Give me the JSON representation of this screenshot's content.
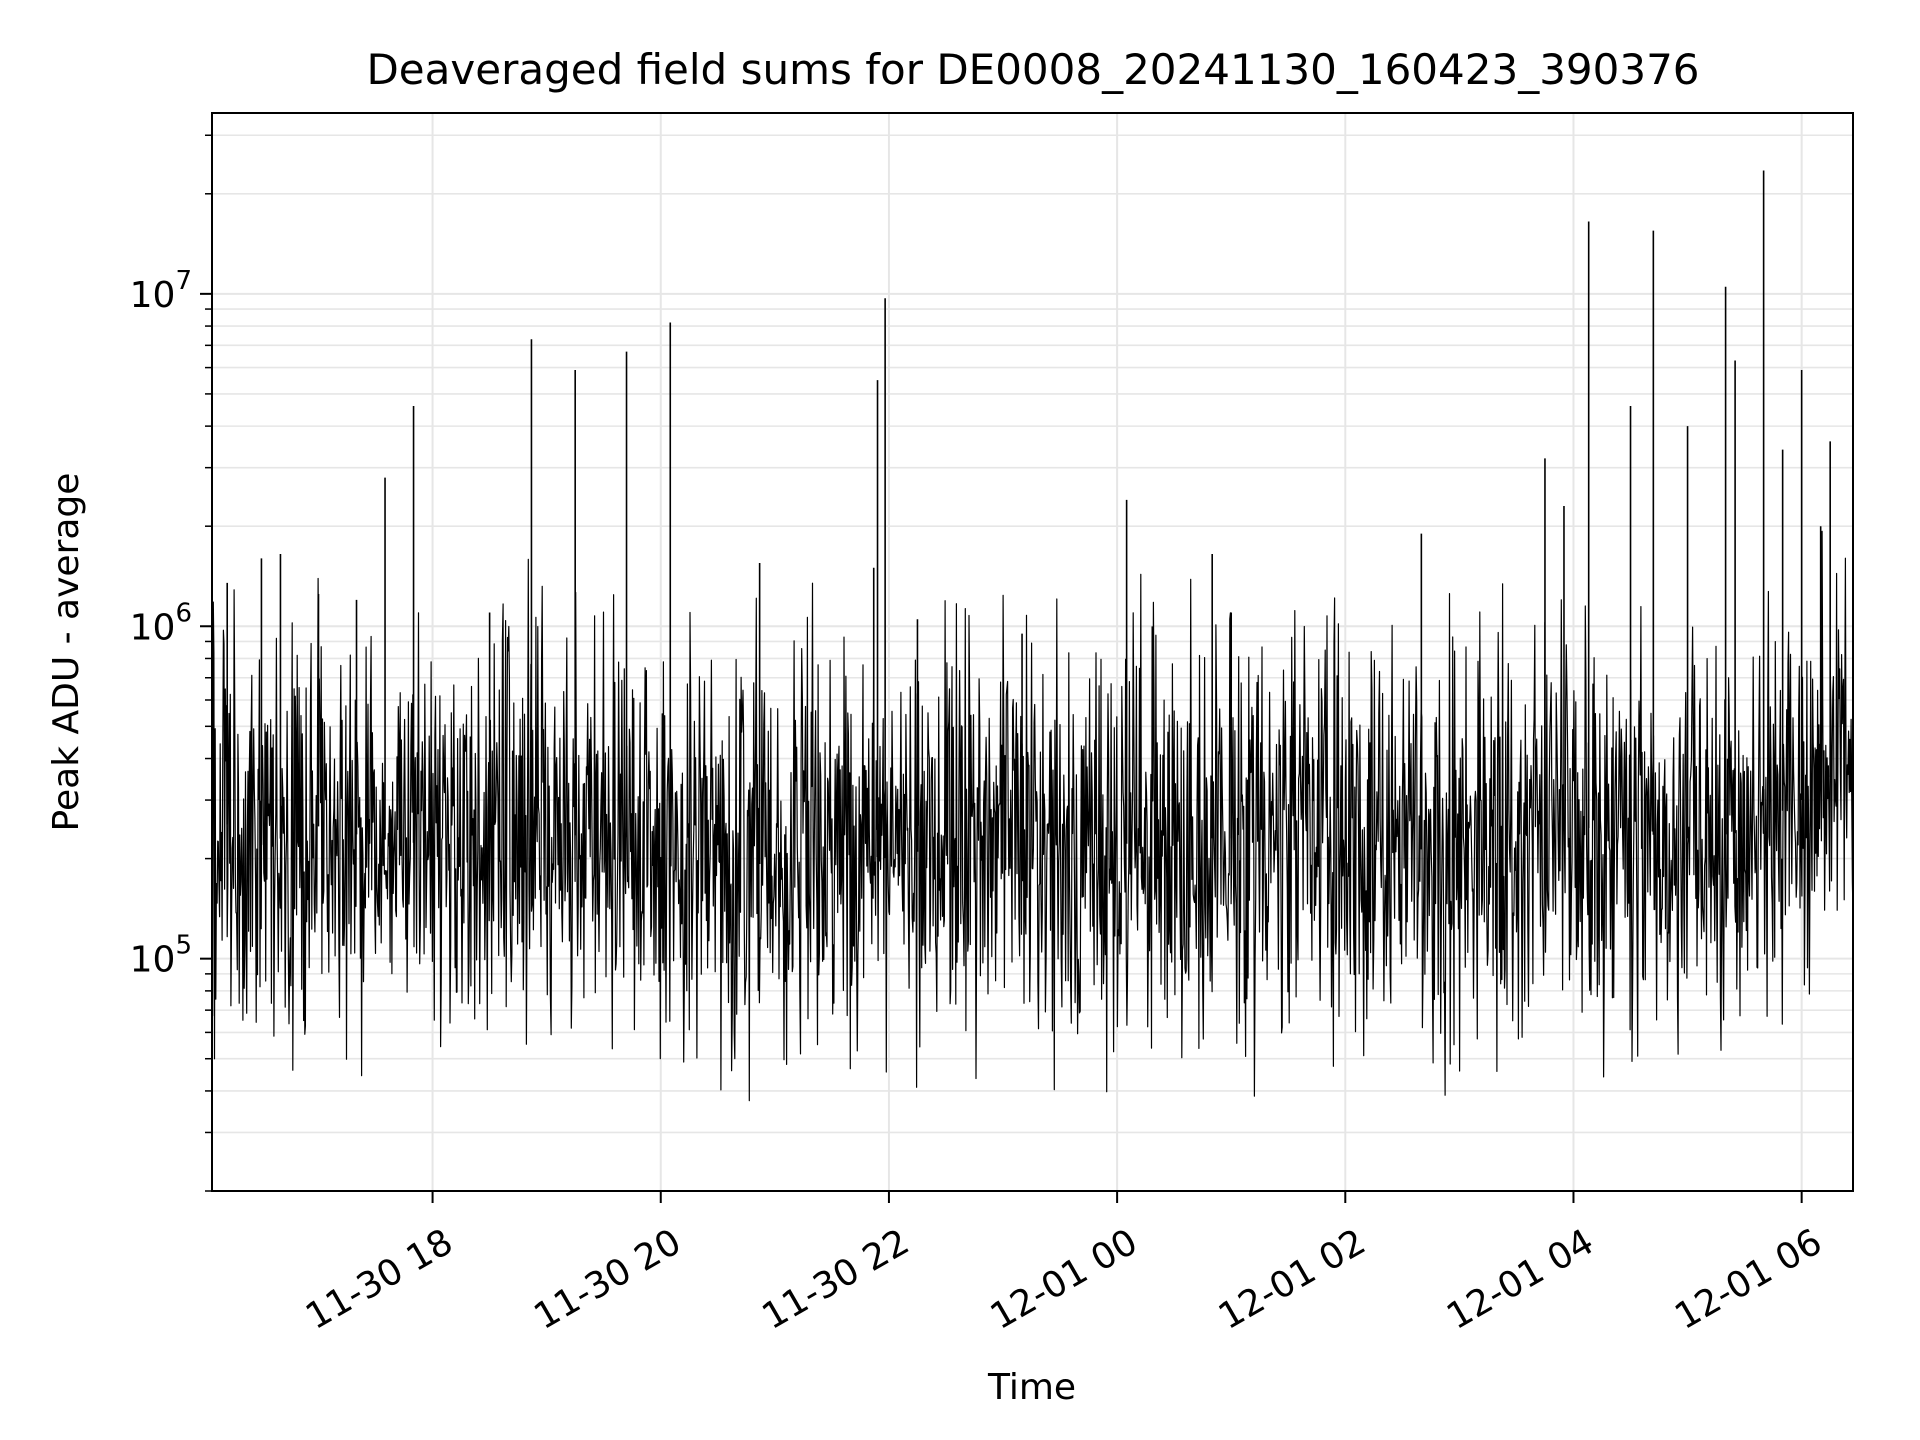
{
  "chart_data": {
    "type": "line",
    "title": "Deaveraged field sums for DE0008_20241130_160423_390376",
    "xlabel": "Time",
    "ylabel": "Peak ADU - average",
    "yscale": "log",
    "ylim": [
      20000,
      35000000
    ],
    "xlim": [
      "2024-11-30 16:04",
      "2024-12-01 06:27"
    ],
    "grid": true,
    "legend": "none",
    "line_color": "#000000",
    "grid_color": "#e6e6e6",
    "x_ticks": [
      {
        "value": "2024-11-30 18:00",
        "label": "11-30 18"
      },
      {
        "value": "2024-11-30 20:00",
        "label": "11-30 20"
      },
      {
        "value": "2024-11-30 22:00",
        "label": "11-30 22"
      },
      {
        "value": "2024-12-01 00:00",
        "label": "12-01 00"
      },
      {
        "value": "2024-12-01 02:00",
        "label": "12-01 02"
      },
      {
        "value": "2024-12-01 04:00",
        "label": "12-01 04"
      },
      {
        "value": "2024-12-01 06:00",
        "label": "12-01 06"
      }
    ],
    "y_ticks": [
      {
        "value": 100000,
        "base": "10",
        "exp": "5"
      },
      {
        "value": 1000000,
        "base": "10",
        "exp": "6"
      },
      {
        "value": 10000000,
        "base": "10",
        "exp": "7"
      }
    ],
    "series": [
      {
        "x": [
          "2024-11-30 16:04",
          "2024-11-30 16:30",
          "2024-11-30 17:00",
          "2024-11-30 17:30",
          "2024-11-30 18:00",
          "2024-11-30 18:30",
          "2024-11-30 19:00",
          "2024-11-30 19:30",
          "2024-11-30 20:00",
          "2024-11-30 20:30",
          "2024-11-30 21:00",
          "2024-11-30 21:30",
          "2024-11-30 22:00",
          "2024-11-30 22:30",
          "2024-11-30 23:00",
          "2024-11-30 23:30",
          "2024-12-01 00:00",
          "2024-12-01 00:30",
          "2024-12-01 01:00",
          "2024-12-01 01:30",
          "2024-12-01 02:00",
          "2024-12-01 02:30",
          "2024-12-01 03:00",
          "2024-12-01 03:30",
          "2024-12-01 04:00",
          "2024-12-01 04:30",
          "2024-12-01 05:00",
          "2024-12-01 05:30",
          "2024-12-01 06:00",
          "2024-12-01 06:27"
        ],
        "values": [
          270000,
          220000,
          250000,
          230000,
          220000,
          230000,
          230000,
          240000,
          220000,
          200000,
          190000,
          210000,
          200000,
          220000,
          230000,
          220000,
          220000,
          230000,
          230000,
          240000,
          220000,
          210000,
          220000,
          230000,
          250000,
          240000,
          230000,
          240000,
          300000,
          400000
        ]
      }
    ],
    "spikes": [
      {
        "x": "2024-11-30 16:12",
        "value": 1350000
      },
      {
        "x": "2024-11-30 16:30",
        "value": 1600000
      },
      {
        "x": "2024-11-30 16:40",
        "value": 1650000
      },
      {
        "x": "2024-11-30 17:00",
        "value": 1250000
      },
      {
        "x": "2024-11-30 17:20",
        "value": 1200000
      },
      {
        "x": "2024-11-30 17:35",
        "value": 2800000
      },
      {
        "x": "2024-11-30 17:50",
        "value": 4600000
      },
      {
        "x": "2024-11-30 18:30",
        "value": 1100000
      },
      {
        "x": "2024-11-30 18:52",
        "value": 7300000
      },
      {
        "x": "2024-11-30 19:15",
        "value": 5900000
      },
      {
        "x": "2024-11-30 19:42",
        "value": 6700000
      },
      {
        "x": "2024-11-30 20:05",
        "value": 8200000
      },
      {
        "x": "2024-11-30 20:52",
        "value": 1550000
      },
      {
        "x": "2024-11-30 21:52",
        "value": 1500000
      },
      {
        "x": "2024-11-30 21:54",
        "value": 5500000
      },
      {
        "x": "2024-11-30 21:58",
        "value": 9700000
      },
      {
        "x": "2024-11-30 22:15",
        "value": 1050000
      },
      {
        "x": "2024-11-30 23:10",
        "value": 950000
      },
      {
        "x": "2024-12-01 00:05",
        "value": 2400000
      },
      {
        "x": "2024-12-01 00:50",
        "value": 1650000
      },
      {
        "x": "2024-12-01 01:00",
        "value": 1100000
      },
      {
        "x": "2024-12-01 02:40",
        "value": 1900000
      },
      {
        "x": "2024-12-01 03:45",
        "value": 3200000
      },
      {
        "x": "2024-12-01 03:55",
        "value": 2300000
      },
      {
        "x": "2024-12-01 04:08",
        "value": 16500000
      },
      {
        "x": "2024-12-01 04:30",
        "value": 4600000
      },
      {
        "x": "2024-12-01 04:42",
        "value": 15500000
      },
      {
        "x": "2024-12-01 05:00",
        "value": 4000000
      },
      {
        "x": "2024-12-01 05:20",
        "value": 10500000
      },
      {
        "x": "2024-12-01 05:25",
        "value": 6300000
      },
      {
        "x": "2024-12-01 05:40",
        "value": 23500000
      },
      {
        "x": "2024-12-01 05:50",
        "value": 3400000
      },
      {
        "x": "2024-12-01 06:00",
        "value": 5900000
      },
      {
        "x": "2024-12-01 06:10",
        "value": 2000000
      },
      {
        "x": "2024-12-01 06:15",
        "value": 3600000
      }
    ]
  }
}
